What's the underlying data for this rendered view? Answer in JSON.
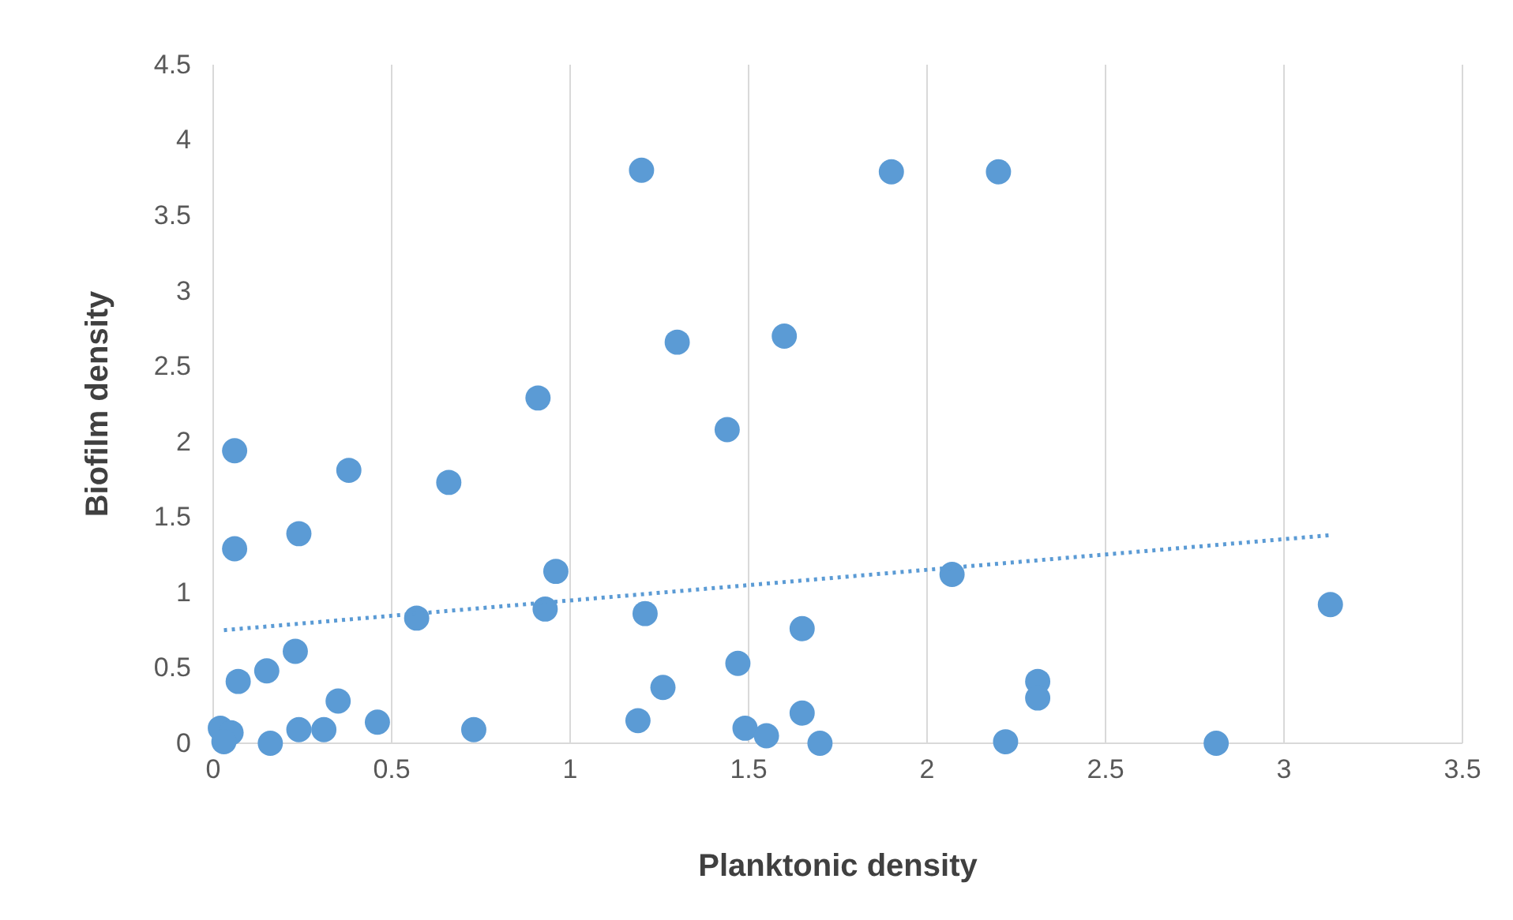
{
  "chart_data": {
    "type": "scatter",
    "xlabel": "Planktonic density",
    "ylabel": "Biofilm density",
    "xlim": [
      0,
      3.5
    ],
    "ylim": [
      0,
      4.5
    ],
    "xticks": [
      0,
      0.5,
      1,
      1.5,
      2,
      2.5,
      3,
      3.5
    ],
    "yticks": [
      0,
      0.5,
      1,
      1.5,
      2,
      2.5,
      3,
      3.5,
      4,
      4.5
    ],
    "grid": "x",
    "marker": "circle",
    "series": [
      {
        "color": "#5b9bd5",
        "x": [
          0.06,
          0.06,
          0.07,
          0.02,
          0.05,
          0.03,
          0.15,
          0.16,
          0.23,
          0.24,
          0.24,
          0.31,
          0.35,
          0.38,
          0.46,
          0.57,
          0.66,
          0.73,
          0.91,
          0.93,
          0.96,
          1.2,
          1.19,
          1.21,
          1.26,
          1.3,
          1.44,
          1.47,
          1.49,
          1.55,
          1.6,
          1.65,
          1.65,
          1.7,
          1.9,
          2.07,
          2.2,
          2.22,
          2.31,
          2.31,
          2.81,
          3.13
        ],
        "values": [
          1.94,
          1.29,
          0.41,
          0.1,
          0.07,
          0.01,
          0.48,
          0.0,
          0.61,
          1.39,
          0.09,
          0.09,
          0.28,
          1.81,
          0.14,
          0.83,
          1.73,
          0.09,
          2.29,
          0.89,
          1.14,
          3.8,
          0.15,
          0.86,
          0.37,
          2.66,
          2.08,
          0.53,
          0.1,
          0.05,
          2.7,
          0.76,
          0.2,
          0.0,
          3.79,
          1.12,
          3.79,
          0.01,
          0.41,
          0.3,
          0.0,
          0.92
        ]
      },
      {
        "type": "line",
        "color": "#5b9bd5",
        "line_style": "dotted",
        "marker": "none",
        "x": [
          0.03,
          3.13
        ],
        "values": [
          0.75,
          1.38
        ]
      }
    ]
  }
}
